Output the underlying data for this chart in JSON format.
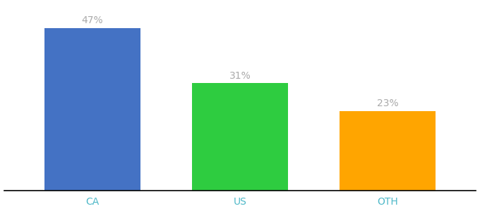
{
  "categories": [
    "CA",
    "US",
    "OTH"
  ],
  "values": [
    47,
    31,
    23
  ],
  "bar_colors": [
    "#4472C4",
    "#2ECC40",
    "#FFA500"
  ],
  "label_texts": [
    "47%",
    "31%",
    "23%"
  ],
  "label_color": "#aaaaaa",
  "ylim": [
    0,
    54
  ],
  "background_color": "#ffffff",
  "bar_width": 0.65,
  "label_fontsize": 10,
  "tick_fontsize": 10,
  "tick_color": "#4db8c8",
  "spine_color": "#000000",
  "figsize": [
    6.8,
    3.0
  ],
  "dpi": 100
}
